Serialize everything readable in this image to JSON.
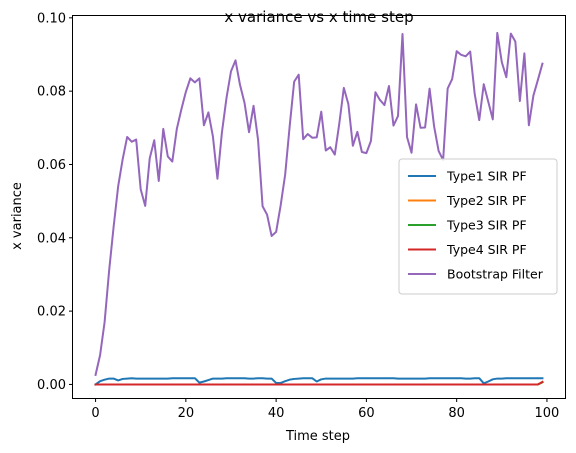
{
  "chart_data": {
    "type": "line",
    "title": "x variance vs x time step",
    "xlabel": "Time step",
    "ylabel": "x variance",
    "xlim": [
      -5,
      104
    ],
    "ylim": [
      -0.0037,
      0.1005
    ],
    "xticks": [
      0,
      20,
      40,
      60,
      80,
      100
    ],
    "xtick_labels": [
      "0",
      "20",
      "40",
      "60",
      "80",
      "100"
    ],
    "yticks": [
      0.0,
      0.02,
      0.04,
      0.06,
      0.08,
      0.1
    ],
    "ytick_labels": [
      "0.00",
      "0.02",
      "0.04",
      "0.06",
      "0.08",
      "0.10"
    ],
    "grid": false,
    "legend_position": "center-right",
    "x": [
      0,
      1,
      2,
      3,
      4,
      5,
      6,
      7,
      8,
      9,
      10,
      11,
      12,
      13,
      14,
      15,
      16,
      17,
      18,
      19,
      20,
      21,
      22,
      23,
      24,
      25,
      26,
      27,
      28,
      29,
      30,
      31,
      32,
      33,
      34,
      35,
      36,
      37,
      38,
      39,
      40,
      41,
      42,
      43,
      44,
      45,
      46,
      47,
      48,
      49,
      50,
      51,
      52,
      53,
      54,
      55,
      56,
      57,
      58,
      59,
      60,
      61,
      62,
      63,
      64,
      65,
      66,
      67,
      68,
      69,
      70,
      71,
      72,
      73,
      74,
      75,
      76,
      77,
      78,
      79,
      80,
      81,
      82,
      83,
      84,
      85,
      86,
      87,
      88,
      89,
      90,
      91,
      92,
      93,
      94,
      95,
      96,
      97,
      98,
      99
    ],
    "series": [
      {
        "name": "Type1 SIR PF",
        "color": "#1f77b4",
        "values": [
          0.0,
          0.0009,
          0.0013,
          0.0016,
          0.0016,
          0.0011,
          0.0015,
          0.0016,
          0.0017,
          0.0016,
          0.0016,
          0.0016,
          0.0016,
          0.0016,
          0.0016,
          0.0016,
          0.0016,
          0.0017,
          0.0017,
          0.0017,
          0.0017,
          0.0017,
          0.0017,
          0.0005,
          0.0008,
          0.0012,
          0.0016,
          0.0016,
          0.0016,
          0.0017,
          0.0017,
          0.0017,
          0.0017,
          0.0017,
          0.0016,
          0.0016,
          0.0017,
          0.0017,
          0.0016,
          0.0016,
          0.0004,
          0.0004,
          0.0009,
          0.0013,
          0.0015,
          0.0016,
          0.0017,
          0.0017,
          0.0017,
          0.0008,
          0.0014,
          0.0016,
          0.0016,
          0.0016,
          0.0016,
          0.0016,
          0.0016,
          0.0016,
          0.0017,
          0.0017,
          0.0017,
          0.0017,
          0.0017,
          0.0017,
          0.0017,
          0.0017,
          0.0017,
          0.0016,
          0.0016,
          0.0016,
          0.0016,
          0.0016,
          0.0016,
          0.0016,
          0.0017,
          0.0017,
          0.0017,
          0.0017,
          0.0017,
          0.0017,
          0.0017,
          0.0017,
          0.0016,
          0.0016,
          0.0017,
          0.0017,
          0.0003,
          0.0008,
          0.0014,
          0.0016,
          0.0016,
          0.0017,
          0.0017,
          0.0017,
          0.0017,
          0.0017,
          0.0017,
          0.0017,
          0.0017,
          0.0017
        ]
      },
      {
        "name": "Type2 SIR PF",
        "color": "#ff7f0e",
        "values": [
          0.0,
          0.0,
          0.0,
          0.0,
          0.0,
          0.0,
          0.0,
          0.0,
          0.0,
          0.0,
          0.0,
          0.0,
          0.0,
          0.0,
          0.0,
          0.0,
          0.0,
          0.0,
          0.0,
          0.0,
          0.0,
          0.0,
          0.0,
          0.0,
          0.0,
          0.0,
          0.0,
          0.0,
          0.0,
          0.0,
          0.0,
          0.0,
          0.0,
          0.0,
          0.0,
          0.0,
          0.0,
          0.0,
          0.0,
          0.0,
          0.0,
          0.0,
          0.0,
          0.0,
          0.0,
          0.0,
          0.0,
          0.0,
          0.0,
          0.0,
          0.0,
          0.0,
          0.0,
          0.0,
          0.0,
          0.0,
          0.0,
          0.0,
          0.0,
          0.0,
          0.0,
          0.0,
          0.0,
          0.0,
          0.0,
          0.0,
          0.0,
          0.0,
          0.0,
          0.0,
          0.0,
          0.0,
          0.0,
          0.0,
          0.0,
          0.0,
          0.0,
          0.0,
          0.0,
          0.0,
          0.0,
          0.0,
          0.0,
          0.0,
          0.0,
          0.0,
          0.0,
          0.0,
          0.0,
          0.0,
          0.0,
          0.0,
          0.0,
          0.0,
          0.0,
          0.0,
          0.0,
          0.0,
          0.0,
          0.0006
        ]
      },
      {
        "name": "Type3 SIR PF",
        "color": "#2ca02c",
        "values": [
          0.0,
          0.0,
          0.0,
          0.0,
          0.0,
          0.0,
          0.0,
          0.0,
          0.0,
          0.0,
          0.0,
          0.0,
          0.0,
          0.0,
          0.0,
          0.0,
          0.0,
          0.0,
          0.0,
          0.0,
          0.0,
          0.0,
          0.0,
          0.0,
          0.0,
          0.0,
          0.0,
          0.0,
          0.0,
          0.0,
          0.0,
          0.0,
          0.0,
          0.0,
          0.0,
          0.0,
          0.0,
          0.0,
          0.0,
          0.0,
          0.0,
          0.0,
          0.0,
          0.0,
          0.0,
          0.0,
          0.0,
          0.0,
          0.0,
          0.0,
          0.0,
          0.0,
          0.0,
          0.0,
          0.0,
          0.0,
          0.0,
          0.0,
          0.0,
          0.0,
          0.0,
          0.0,
          0.0,
          0.0,
          0.0,
          0.0,
          0.0,
          0.0,
          0.0,
          0.0,
          0.0,
          0.0,
          0.0,
          0.0,
          0.0,
          0.0,
          0.0,
          0.0,
          0.0,
          0.0,
          0.0,
          0.0,
          0.0,
          0.0,
          0.0,
          0.0,
          0.0,
          0.0,
          0.0,
          0.0,
          0.0,
          0.0,
          0.0,
          0.0,
          0.0,
          0.0,
          0.0,
          0.0,
          0.0,
          0.0006
        ]
      },
      {
        "name": "Type4 SIR PF",
        "color": "#d62728",
        "values": [
          0.0,
          0.0,
          0.0,
          0.0,
          0.0,
          0.0,
          0.0,
          0.0,
          0.0,
          0.0,
          0.0,
          0.0,
          0.0,
          0.0,
          0.0,
          0.0,
          0.0,
          0.0,
          0.0,
          0.0,
          0.0,
          0.0,
          0.0,
          0.0,
          0.0,
          0.0,
          0.0,
          0.0,
          0.0,
          0.0,
          0.0,
          0.0,
          0.0,
          0.0,
          0.0,
          0.0,
          0.0,
          0.0,
          0.0,
          0.0,
          0.0,
          0.0,
          0.0,
          0.0,
          0.0,
          0.0,
          0.0,
          0.0,
          0.0,
          0.0,
          0.0,
          0.0,
          0.0,
          0.0,
          0.0,
          0.0,
          0.0,
          0.0,
          0.0,
          0.0,
          0.0,
          0.0,
          0.0,
          0.0,
          0.0,
          0.0,
          0.0,
          0.0,
          0.0,
          0.0,
          0.0,
          0.0,
          0.0,
          0.0,
          0.0,
          0.0,
          0.0,
          0.0,
          0.0,
          0.0,
          0.0,
          0.0,
          0.0,
          0.0,
          0.0,
          0.0,
          0.0,
          0.0,
          0.0,
          0.0,
          0.0,
          0.0,
          0.0,
          0.0,
          0.0,
          0.0,
          0.0,
          0.0,
          0.0,
          0.0007
        ]
      },
      {
        "name": "Bootstrap Filter",
        "color": "#9467bd",
        "values": [
          0.0026,
          0.008,
          0.017,
          0.031,
          0.043,
          0.054,
          0.0614,
          0.0675,
          0.0662,
          0.0668,
          0.0532,
          0.0487,
          0.0617,
          0.0666,
          0.0555,
          0.0697,
          0.0622,
          0.0608,
          0.0697,
          0.075,
          0.0798,
          0.0835,
          0.0824,
          0.0835,
          0.0707,
          0.0742,
          0.0676,
          0.0561,
          0.0688,
          0.0781,
          0.0854,
          0.0884,
          0.0817,
          0.0768,
          0.0688,
          0.076,
          0.0667,
          0.0486,
          0.0463,
          0.0405,
          0.0416,
          0.0488,
          0.0572,
          0.0704,
          0.0826,
          0.0845,
          0.0669,
          0.0683,
          0.0673,
          0.0674,
          0.0744,
          0.0638,
          0.0647,
          0.0627,
          0.0712,
          0.0809,
          0.0765,
          0.0651,
          0.0689,
          0.0634,
          0.0631,
          0.0664,
          0.0797,
          0.0776,
          0.0762,
          0.0814,
          0.0706,
          0.0732,
          0.0956,
          0.0675,
          0.0632,
          0.0764,
          0.07,
          0.0701,
          0.0807,
          0.0704,
          0.0637,
          0.0612,
          0.0807,
          0.0833,
          0.0909,
          0.0899,
          0.0895,
          0.0908,
          0.0792,
          0.0721,
          0.0819,
          0.0771,
          0.0723,
          0.0959,
          0.0879,
          0.0838,
          0.0957,
          0.0935,
          0.0773,
          0.0903,
          0.0707,
          0.0788,
          0.0831,
          0.0875
        ]
      }
    ]
  }
}
